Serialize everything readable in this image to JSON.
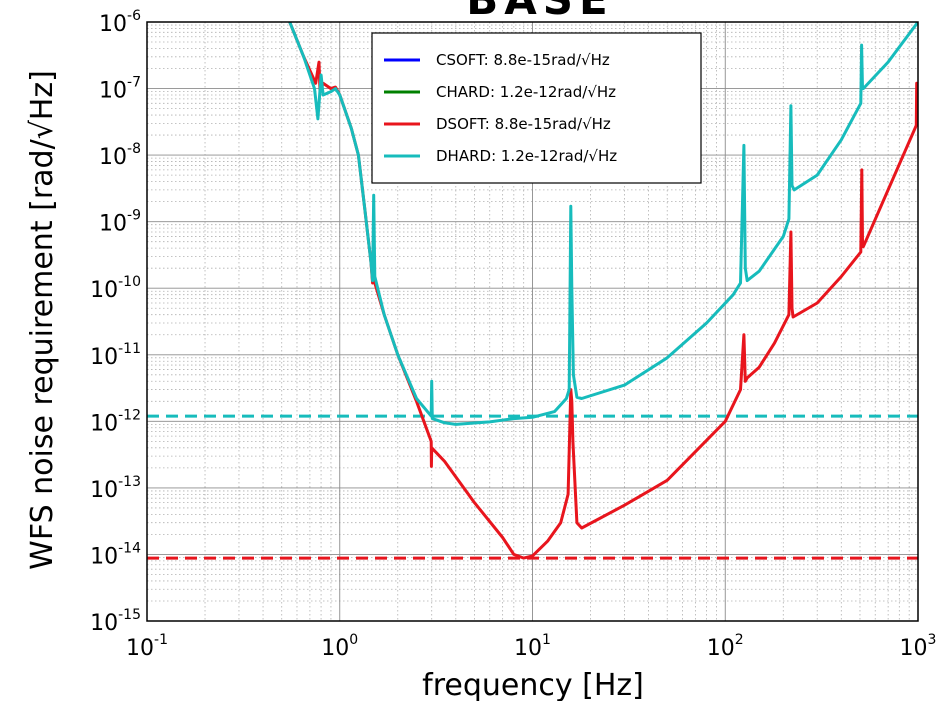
{
  "chart_data": {
    "type": "line",
    "title_fragment": "BASE",
    "xlabel": "frequency [Hz]",
    "ylabel": "WFS noise requirement [rad/√Hz]",
    "x_scale": "log",
    "y_scale": "log",
    "xlim": [
      0.1,
      1000
    ],
    "ylim": [
      1e-15,
      1e-06
    ],
    "grid": true,
    "legend_position": "top-center",
    "x_ticks": [
      {
        "value": 0.1,
        "base": "10",
        "exp": "-1"
      },
      {
        "value": 1,
        "base": "10",
        "exp": "0"
      },
      {
        "value": 10,
        "base": "10",
        "exp": "1"
      },
      {
        "value": 100,
        "base": "10",
        "exp": "2"
      },
      {
        "value": 1000,
        "base": "10",
        "exp": "3"
      }
    ],
    "y_ticks": [
      {
        "value": 1e-15,
        "base": "10",
        "exp": "-15"
      },
      {
        "value": 1e-14,
        "base": "10",
        "exp": "-14"
      },
      {
        "value": 1e-13,
        "base": "10",
        "exp": "-13"
      },
      {
        "value": 1e-12,
        "base": "10",
        "exp": "-12"
      },
      {
        "value": 1e-11,
        "base": "10",
        "exp": "-11"
      },
      {
        "value": 1e-10,
        "base": "10",
        "exp": "-10"
      },
      {
        "value": 1e-09,
        "base": "10",
        "exp": "-9"
      },
      {
        "value": 1e-08,
        "base": "10",
        "exp": "-8"
      },
      {
        "value": 1e-07,
        "base": "10",
        "exp": "-7"
      },
      {
        "value": 1e-06,
        "base": "10",
        "exp": "-6"
      }
    ],
    "legend": [
      {
        "name": "CSOFT",
        "label": "CSOFT: 8.8e-15rad/√Hz",
        "color": "#0000ff"
      },
      {
        "name": "CHARD",
        "label": "CHARD: 1.2e-12rad/√Hz",
        "color": "#008000"
      },
      {
        "name": "DSOFT",
        "label": "DSOFT: 8.8e-15rad/√Hz",
        "color": "#e8151d"
      },
      {
        "name": "DHARD",
        "label": "DHARD: 1.2e-12rad/√Hz",
        "color": "#17bcbc"
      }
    ],
    "series": [
      {
        "name": "DSOFT",
        "color": "#e8151d",
        "style": "solid",
        "points": [
          [
            0.55,
            1e-06
          ],
          [
            0.65,
            3e-07
          ],
          [
            0.75,
            1.2e-07
          ],
          [
            0.78,
            2.5e-07
          ],
          [
            0.79,
            9e-08
          ],
          [
            0.82,
            1.2e-07
          ],
          [
            0.9,
            1e-07
          ],
          [
            0.95,
            1.05e-07
          ],
          [
            1.0,
            8e-08
          ],
          [
            1.15,
            2.5e-08
          ],
          [
            1.25,
            1e-08
          ],
          [
            1.35,
            1.5e-09
          ],
          [
            1.45,
            2.5e-10
          ],
          [
            1.48,
            1.2e-10
          ],
          [
            1.5,
            1.6e-10
          ],
          [
            1.52,
            1.2e-10
          ],
          [
            1.7,
            4e-11
          ],
          [
            2.0,
            1e-11
          ],
          [
            2.5,
            2e-12
          ],
          [
            2.98,
            5e-13
          ],
          [
            2.99,
            2.1e-13
          ],
          [
            3.0,
            4e-13
          ],
          [
            3.5,
            2.5e-13
          ],
          [
            5,
            6e-14
          ],
          [
            7,
            1.8e-14
          ],
          [
            8,
            1e-14
          ],
          [
            9,
            8.8e-15
          ],
          [
            10,
            9.5e-15
          ],
          [
            12,
            1.6e-14
          ],
          [
            14,
            3e-14
          ],
          [
            15.3,
            8e-14
          ],
          [
            15.8,
            3e-12
          ],
          [
            16,
            2e-12
          ],
          [
            16.2,
            5e-13
          ],
          [
            17,
            3e-14
          ],
          [
            18,
            2.5e-14
          ],
          [
            30,
            5.5e-14
          ],
          [
            50,
            1.3e-13
          ],
          [
            70,
            3.5e-13
          ],
          [
            100,
            1e-12
          ],
          [
            120,
            3e-12
          ],
          [
            125,
            2e-11
          ],
          [
            127,
            4e-12
          ],
          [
            130,
            4.5e-12
          ],
          [
            150,
            6.5e-12
          ],
          [
            180,
            1.5e-11
          ],
          [
            214,
            4e-11
          ],
          [
            219,
            7e-10
          ],
          [
            222,
            5e-11
          ],
          [
            225,
            3.7e-11
          ],
          [
            300,
            6e-11
          ],
          [
            400,
            1.5e-10
          ],
          [
            505,
            3.5e-10
          ],
          [
            511,
            6e-09
          ],
          [
            515,
            5e-10
          ],
          [
            520,
            4.2e-10
          ],
          [
            700,
            3e-09
          ],
          [
            980,
            2.8e-08
          ],
          [
            985,
            1.2e-07
          ],
          [
            990,
            3e-08
          ],
          [
            1000,
            3e-08
          ]
        ]
      },
      {
        "name": "DHARD",
        "color": "#17bcbc",
        "style": "solid",
        "points": [
          [
            0.55,
            1e-06
          ],
          [
            0.65,
            3e-07
          ],
          [
            0.74,
            1e-07
          ],
          [
            0.77,
            3.5e-08
          ],
          [
            0.8,
            1.6e-07
          ],
          [
            0.82,
            8e-08
          ],
          [
            0.9,
            9e-08
          ],
          [
            0.95,
            1e-07
          ],
          [
            1.0,
            8e-08
          ],
          [
            1.15,
            2.5e-08
          ],
          [
            1.25,
            1e-08
          ],
          [
            1.35,
            1.5e-09
          ],
          [
            1.45,
            2.5e-10
          ],
          [
            1.48,
            1.3e-10
          ],
          [
            1.5,
            2.5e-09
          ],
          [
            1.52,
            1.5e-10
          ],
          [
            1.7,
            4e-11
          ],
          [
            2.0,
            1e-11
          ],
          [
            2.5,
            2.2e-12
          ],
          [
            2.98,
            1.2e-12
          ],
          [
            3.0,
            4e-12
          ],
          [
            3.02,
            1.1e-12
          ],
          [
            3.5,
            9.5e-13
          ],
          [
            4,
            9e-13
          ],
          [
            6,
            9.8e-13
          ],
          [
            8,
            1.1e-12
          ],
          [
            10,
            1.15e-12
          ],
          [
            13,
            1.4e-12
          ],
          [
            15,
            2.2e-12
          ],
          [
            15.5,
            3e-12
          ],
          [
            15.8,
            1.7e-09
          ],
          [
            16.0,
            1e-10
          ],
          [
            16.3,
            5e-12
          ],
          [
            17,
            2.3e-12
          ],
          [
            18,
            2.2e-12
          ],
          [
            30,
            3.5e-12
          ],
          [
            50,
            9e-12
          ],
          [
            80,
            3e-11
          ],
          [
            110,
            8e-11
          ],
          [
            120,
            1.2e-10
          ],
          [
            125,
            1.4e-08
          ],
          [
            127,
            2e-10
          ],
          [
            130,
            1.3e-10
          ],
          [
            150,
            1.8e-10
          ],
          [
            200,
            6e-10
          ],
          [
            214,
            1.1e-09
          ],
          [
            219,
            5.5e-08
          ],
          [
            222,
            3.5e-09
          ],
          [
            228,
            3e-09
          ],
          [
            300,
            5e-09
          ],
          [
            400,
            1.7e-08
          ],
          [
            505,
            6e-08
          ],
          [
            510,
            4.5e-07
          ],
          [
            515,
            1e-07
          ],
          [
            520,
            1e-07
          ],
          [
            700,
            2.5e-07
          ],
          [
            1000,
            1e-06
          ]
        ]
      },
      {
        "name": "DSOFT-requirement",
        "color": "#e8151d",
        "style": "dashed",
        "points": [
          [
            0.1,
            8.8e-15
          ],
          [
            1000,
            8.8e-15
          ]
        ]
      },
      {
        "name": "DHARD-requirement",
        "color": "#17bcbc",
        "style": "dashed",
        "points": [
          [
            0.1,
            1.2e-12
          ],
          [
            1000,
            1.2e-12
          ]
        ]
      }
    ]
  }
}
